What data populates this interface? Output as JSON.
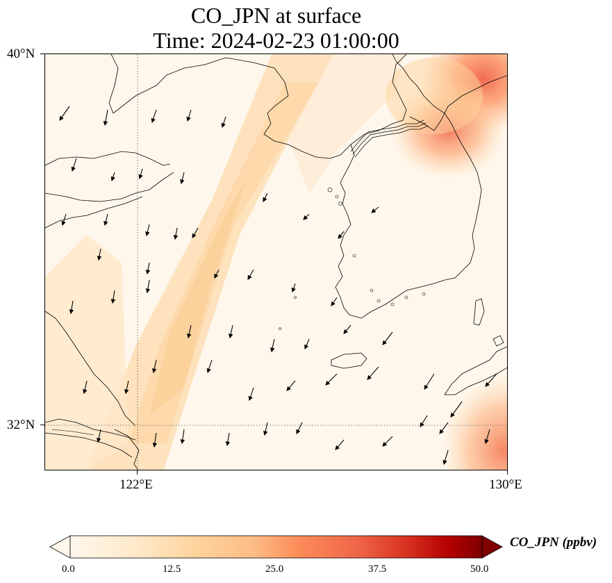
{
  "title": {
    "line1": "CO_JPN at surface",
    "line2": "Time: 2024-02-23 01:00:00"
  },
  "map": {
    "lon_range": [
      119,
      130
    ],
    "lat_range": [
      31,
      40
    ],
    "gridlines": {
      "lons": [
        122,
        130
      ],
      "lats": [
        32,
        40
      ],
      "style": "dotted"
    },
    "lat_ticks": [
      {
        "label": "40°N",
        "lat": 40
      },
      {
        "label": "32°N",
        "lat": 32
      }
    ],
    "lon_ticks": [
      {
        "label": "122°E",
        "lon": 122
      },
      {
        "label": "130°E",
        "lon": 130
      }
    ],
    "field": {
      "variable": "CO_JPN",
      "units": "ppbv",
      "background_value": 2,
      "plume_band": "diagonal NE-SW band of ~8-12 ppbv across Yellow Sea",
      "hotspots": [
        {
          "name": "NE corner",
          "lon": 129.6,
          "lat": 39.6,
          "value": 26
        },
        {
          "name": "NE Korea coast",
          "lon": 128.4,
          "lat": 38.6,
          "value": 22
        },
        {
          "name": "SE corner",
          "lon": 129.8,
          "lat": 31.4,
          "value": 20
        }
      ]
    },
    "wind_vectors": "southward-directed arrows (northerly winds) over the domain"
  },
  "colorbar": {
    "title": "CO_JPN (ppbv)",
    "min": 0.0,
    "max": 50.0,
    "extend": "both",
    "colormap": "OrRd",
    "tick_labels": [
      "0.0",
      "12.5",
      "25.0",
      "37.5",
      "50.0"
    ],
    "colors": [
      "#fff7ec",
      "#fdd49e",
      "#fc8d59",
      "#d7301f",
      "#7f0000"
    ]
  }
}
